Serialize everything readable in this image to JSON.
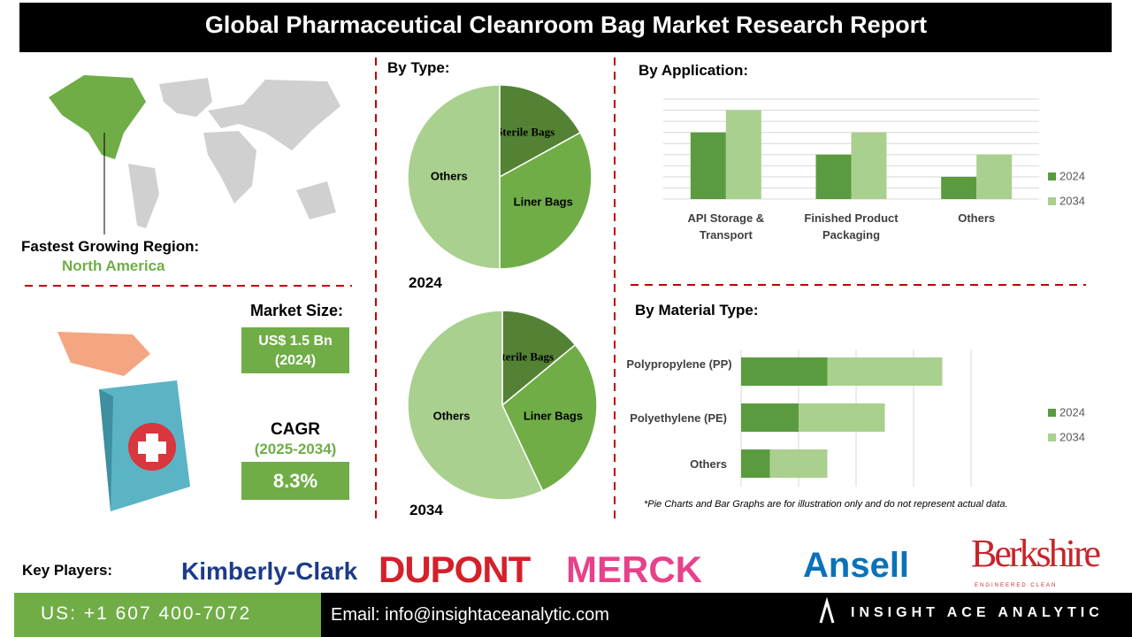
{
  "header": {
    "title": "Global Pharmaceutical Cleanroom Bag Market Research Report"
  },
  "region": {
    "label": "Fastest Growing Region:",
    "value": "North America"
  },
  "market_size": {
    "label": "Market Size:",
    "value": "US$ 1.5 Bn",
    "year": "(2024)"
  },
  "cagr": {
    "label": "CAGR",
    "period": "(2025-2034)",
    "value": "8.3%"
  },
  "chart_data": [
    {
      "type": "pie",
      "title": "By Type:",
      "subtitle": "2024",
      "categories": [
        "Sterile Bags",
        "Liner Bags",
        "Others"
      ],
      "values": [
        17,
        33,
        50
      ],
      "colors": [
        "#548235",
        "#70ad47",
        "#a9d08e"
      ]
    },
    {
      "type": "pie",
      "subtitle": "2034",
      "categories": [
        "Sterile Bags",
        "Liner Bags",
        "Others"
      ],
      "values": [
        14,
        29,
        57
      ],
      "colors": [
        "#548235",
        "#70ad47",
        "#a9d08e"
      ]
    },
    {
      "type": "bar",
      "title": "By Application:",
      "categories": [
        "API Storage & Transport",
        "Finished Product Packaging",
        "Others"
      ],
      "series": [
        {
          "name": "2024",
          "color": "#5b9b3f",
          "values": [
            6,
            4,
            2
          ]
        },
        {
          "name": "2034",
          "color": "#a9d08e",
          "values": [
            8,
            6,
            4
          ]
        }
      ],
      "ylim": [
        0,
        9
      ],
      "grid": true,
      "legend": "right"
    },
    {
      "type": "barh",
      "stacked": true,
      "title": "By Material Type:",
      "categories": [
        "Polypropylene (PP)",
        "Polyethylene (PE)",
        "Others"
      ],
      "series": [
        {
          "name": "2024",
          "color": "#5b9b3f",
          "values": [
            1.5,
            1,
            0.5
          ]
        },
        {
          "name": "2034",
          "color": "#a9d08e",
          "values": [
            2,
            1.5,
            1
          ]
        }
      ],
      "xlim": [
        0,
        4
      ],
      "grid": true,
      "legend": "right"
    }
  ],
  "note": "*Pie Charts and Bar Graphs are for illustration only and do not represent actual data.",
  "key_players": {
    "label": "Key Players:",
    "names": [
      "Kimberly-Clark",
      "DUPONT",
      "MERCK",
      "Ansell",
      "Berkshire"
    ],
    "tagline": "ENGINEERED CLEAN"
  },
  "footer": {
    "phone": "US: +1 607 400-7072",
    "email": "Email: info@insightaceanalytic.com",
    "brand": "INSIGHT ACE ANALYTIC"
  }
}
